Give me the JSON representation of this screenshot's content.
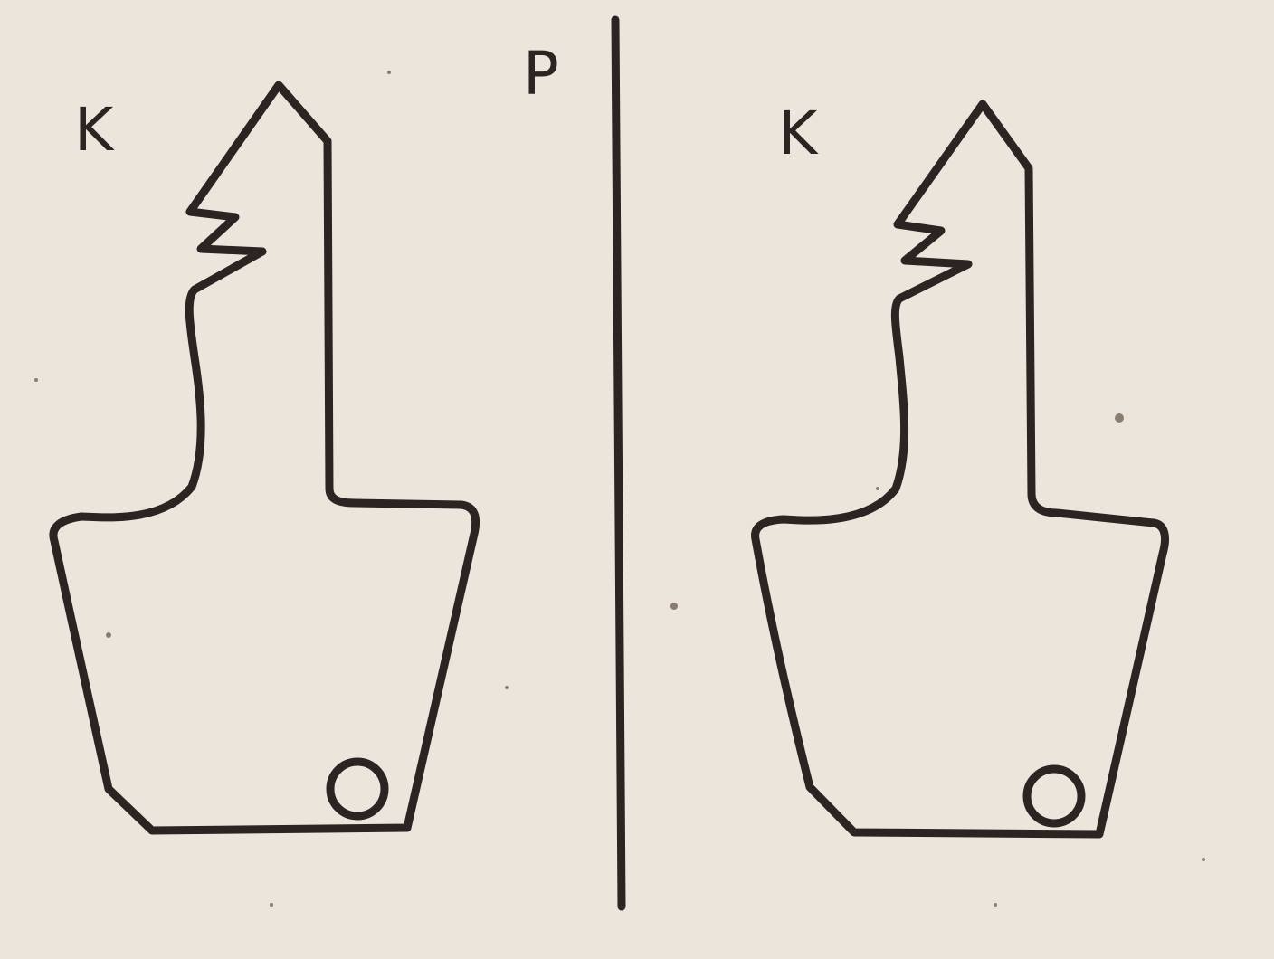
{
  "figure": {
    "left_label": "K",
    "mirror_label": "P",
    "right_label": "K"
  },
  "colors": {
    "paper": "#ece5dc",
    "ink": "#2a2522"
  }
}
